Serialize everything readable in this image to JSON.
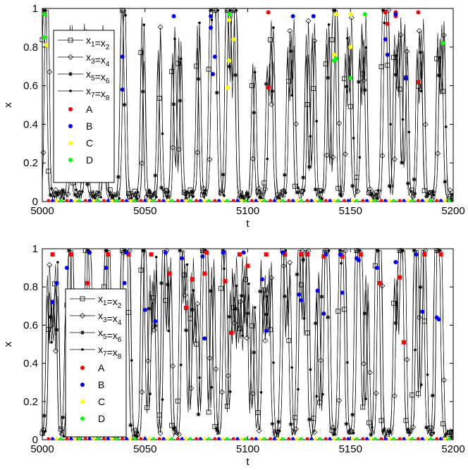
{
  "chart_data": [
    {
      "type": "line",
      "panel": "top",
      "xlabel": "t",
      "ylabel": "x",
      "xlim": [
        5000,
        5200
      ],
      "ylim": [
        0,
        1
      ],
      "xticks": [
        5000,
        5050,
        5100,
        5150,
        5200
      ],
      "yticks": [
        0,
        0.2,
        0.4,
        0.6,
        0.8,
        1
      ],
      "xtick_labels": [
        "5000",
        "5050",
        "5100",
        "5150",
        "5200"
      ],
      "ytick_labels": [
        "0",
        "0.2",
        "0.4",
        "0.6",
        "0.8",
        "1"
      ],
      "legend_position": "upper-left",
      "series": [
        {
          "name": "x1=x2",
          "label_parts": [
            [
              "x",
              "1"
            ],
            [
              "=x",
              "2"
            ]
          ],
          "marker": "square-open",
          "color": "#000000"
        },
        {
          "name": "x3=x4",
          "label_parts": [
            [
              "x",
              "3"
            ],
            [
              "=x",
              "4"
            ]
          ],
          "marker": "diamond-open",
          "color": "#000000"
        },
        {
          "name": "x5=x6",
          "label_parts": [
            [
              "x",
              "5"
            ],
            [
              "=x",
              "6"
            ]
          ],
          "marker": "star",
          "color": "#000000"
        },
        {
          "name": "x7=x8",
          "label_parts": [
            [
              "x",
              "7"
            ],
            [
              "=x",
              "8"
            ]
          ],
          "marker": "dot",
          "color": "#000000"
        }
      ],
      "events": [
        {
          "name": "A",
          "color": "#ff0000",
          "points": [
            [
              5110,
              0.98
            ],
            [
              5110,
              0.59
            ],
            [
              5167,
              0.98
            ],
            [
              5168,
              0.92
            ],
            [
              5172,
              0.98
            ],
            [
              5172,
              0.96
            ],
            [
              5183,
              0.98
            ],
            [
              5183,
              0.62
            ]
          ]
        },
        {
          "name": "B",
          "color": "#0000ff",
          "points": [
            [
              5039,
              0.75
            ],
            [
              5039,
              0.58
            ],
            [
              5064,
              0.96
            ],
            [
              5082,
              0.96
            ],
            [
              5082,
              0.9
            ],
            [
              5083,
              0.66
            ],
            [
              5084,
              0.75
            ],
            [
              5122,
              0.96
            ],
            [
              5132,
              0.96
            ],
            [
              5167,
              0.84
            ],
            [
              5168,
              0.76
            ],
            [
              5172,
              0.97
            ],
            [
              5177,
              0.64
            ]
          ]
        },
        {
          "name": "C",
          "color": "#ffff00",
          "points": [
            [
              5002,
              0.81
            ],
            [
              5091,
              0.94
            ],
            [
              5091,
              0.73
            ],
            [
              5090,
              0.59
            ],
            [
              5093,
              0.84
            ],
            [
              5142,
              0.76
            ],
            [
              5143,
              0.97
            ],
            [
              5150,
              0.97
            ],
            [
              5150,
              0.8
            ]
          ]
        },
        {
          "name": "D",
          "color": "#00ff00",
          "points": [
            [
              5001,
              0.97
            ],
            [
              5001,
              0.85
            ],
            [
              5091,
              0.97
            ],
            [
              5142,
              0.73
            ],
            [
              5143,
              0.74
            ],
            [
              5150,
              0.64
            ],
            [
              5157,
              0.97
            ],
            [
              5195,
              0.82
            ]
          ]
        }
      ]
    },
    {
      "type": "line",
      "panel": "bottom",
      "xlabel": "t",
      "ylabel": "x",
      "xlim": [
        5000,
        5200
      ],
      "ylim": [
        0,
        1
      ],
      "xticks": [
        5000,
        5050,
        5100,
        5150,
        5200
      ],
      "yticks": [
        0,
        0.2,
        0.4,
        0.6,
        0.8,
        1
      ],
      "xtick_labels": [
        "5000",
        "5050",
        "5100",
        "5150",
        "5200"
      ],
      "ytick_labels": [
        "0",
        "0.2",
        "0.4",
        "0.6",
        "0.8",
        "1"
      ],
      "legend_position": "left",
      "series": [
        {
          "name": "x1=x2",
          "label_parts": [
            [
              "x",
              "1"
            ],
            [
              "=x",
              "2"
            ]
          ],
          "marker": "square-open",
          "color": "#000000"
        },
        {
          "name": "x3=x4",
          "label_parts": [
            [
              "x",
              "3"
            ],
            [
              "=x",
              "4"
            ]
          ],
          "marker": "diamond-open",
          "color": "#000000"
        },
        {
          "name": "x5=x6",
          "label_parts": [
            [
              "x",
              "5"
            ],
            [
              "=x",
              "6"
            ]
          ],
          "marker": "star",
          "color": "#000000"
        },
        {
          "name": "x7=x8",
          "label_parts": [
            [
              "x",
              "7"
            ],
            [
              "=x",
              "8"
            ]
          ],
          "marker": "dot",
          "color": "#000000"
        }
      ],
      "events": [
        {
          "name": "A",
          "color": "#ff0000",
          "points": [
            [
              5005,
              0.97
            ],
            [
              5014,
              0.97
            ],
            [
              5022,
              0.82
            ],
            [
              5032,
              0.97
            ],
            [
              5042,
              0.97
            ],
            [
              5053,
              0.97
            ],
            [
              5062,
              0.87
            ],
            [
              5070,
              0.69
            ],
            [
              5073,
              0.84
            ],
            [
              5079,
              0.87
            ],
            [
              5080,
              0.98
            ],
            [
              5089,
              0.83
            ],
            [
              5092,
              0.56
            ],
            [
              5096,
              0.97
            ],
            [
              5100,
              0.91
            ],
            [
              5109,
              0.97
            ],
            [
              5118,
              0.97
            ],
            [
              5126,
              0.97
            ],
            [
              5129,
              0.97
            ],
            [
              5137,
              0.96
            ],
            [
              5146,
              0.96
            ],
            [
              5155,
              0.97
            ],
            [
              5164,
              0.82
            ],
            [
              5174,
              0.85
            ],
            [
              5176,
              0.51
            ],
            [
              5186,
              0.97
            ],
            [
              5194,
              0.97
            ]
          ]
        },
        {
          "name": "B",
          "color": "#0000ff",
          "points": [
            [
              5005,
              0.72
            ],
            [
              5007,
              0.82
            ],
            [
              5012,
              0.9
            ],
            [
              5023,
              0.98
            ],
            [
              5031,
              0.9
            ],
            [
              5040,
              0.82
            ],
            [
              5041,
              0.98
            ],
            [
              5050,
              0.68
            ],
            [
              5055,
              0.62
            ],
            [
              5060,
              0.98
            ],
            [
              5068,
              0.95
            ],
            [
              5078,
              0.96
            ],
            [
              5079,
              0.53
            ],
            [
              5088,
              0.98
            ],
            [
              5098,
              0.98
            ],
            [
              5107,
              0.84
            ],
            [
              5109,
              0.57
            ],
            [
              5117,
              0.98
            ],
            [
              5125,
              0.76
            ],
            [
              5126,
              0.73
            ],
            [
              5134,
              0.78
            ],
            [
              5137,
              0.66
            ],
            [
              5138,
              0.97
            ],
            [
              5145,
              0.97
            ],
            [
              5146,
              0.77
            ],
            [
              5153,
              0.95
            ],
            [
              5154,
              0.94
            ],
            [
              5163,
              0.9
            ],
            [
              5172,
              0.93
            ],
            [
              5182,
              0.97
            ],
            [
              5185,
              0.67
            ],
            [
              5192,
              0.64
            ],
            [
              5193,
              0.63
            ]
          ]
        },
        {
          "name": "C",
          "color": "#ffff00",
          "points": []
        },
        {
          "name": "D",
          "color": "#00ff00",
          "points": []
        }
      ]
    }
  ]
}
